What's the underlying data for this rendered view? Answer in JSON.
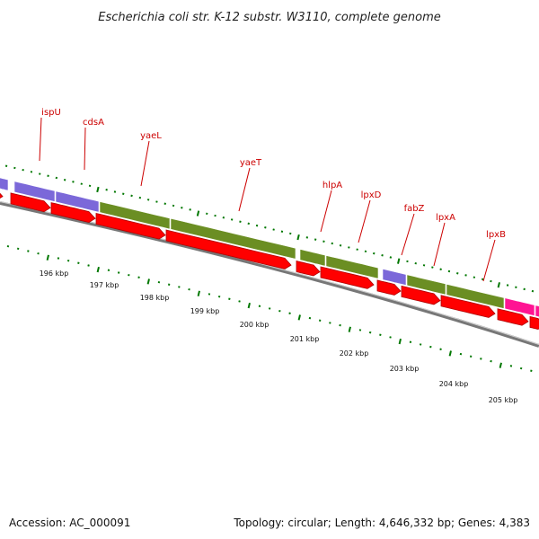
{
  "title": "Escherichia coli str. K-12 substr. W3110, complete genome",
  "footer": {
    "accession": "Accession: AC_000091",
    "topology": "Topology: circular; Length: 4,646,332 bp; Genes: 4,383"
  },
  "colors": {
    "cds_red": "#ff0000",
    "cds_red_dark": "#b00000",
    "purple": "#7b68d9",
    "olive": "#6b8e23",
    "magenta": "#ff1493",
    "tick_green": "#007700",
    "backbone": "#777777",
    "label_red": "#cc0000"
  },
  "gene_labels": [
    "ispU",
    "cdsA",
    "yaeL",
    "yaeT",
    "hlpA",
    "lpxD",
    "fabZ",
    "lpxA",
    "lpxB"
  ],
  "kbp_labels": [
    "196 kbp",
    "197 kbp",
    "198 kbp",
    "199 kbp",
    "200 kbp",
    "201 kbp",
    "202 kbp",
    "203 kbp",
    "204 kbp",
    "205 kbp"
  ],
  "categories": {
    "segments": [
      "purple",
      "purple",
      "purple",
      "olive",
      "olive",
      "olive",
      "olive",
      "purple",
      "olive",
      "olive",
      "magenta",
      "magenta"
    ]
  }
}
